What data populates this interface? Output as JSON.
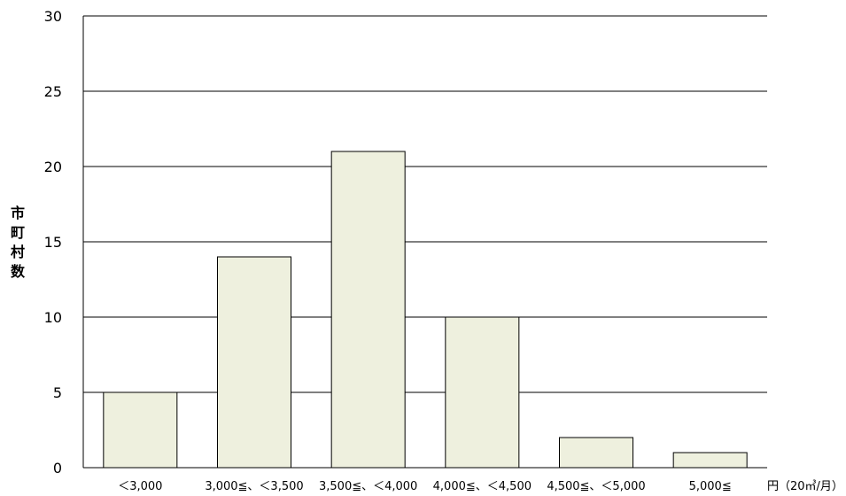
{
  "chart_data": {
    "type": "bar",
    "categories": [
      "＜3,000",
      "3,000≦、＜3,500",
      "3,500≦、＜4,000",
      "4,000≦、＜4,500",
      "4,500≦、＜5,000",
      "5,000≦"
    ],
    "values": [
      5,
      14,
      21,
      10,
      2,
      1
    ],
    "title": "",
    "xlabel": "円（20㎥/月）",
    "ylabel": "市町村数",
    "ylim": [
      0,
      30
    ],
    "yticks": [
      0,
      5,
      10,
      15,
      20,
      25,
      30
    ],
    "grid": true,
    "legend": "none",
    "colors": {
      "bar_fill": "#eef0de",
      "bar_stroke": "#000000",
      "grid": "#000000"
    }
  }
}
